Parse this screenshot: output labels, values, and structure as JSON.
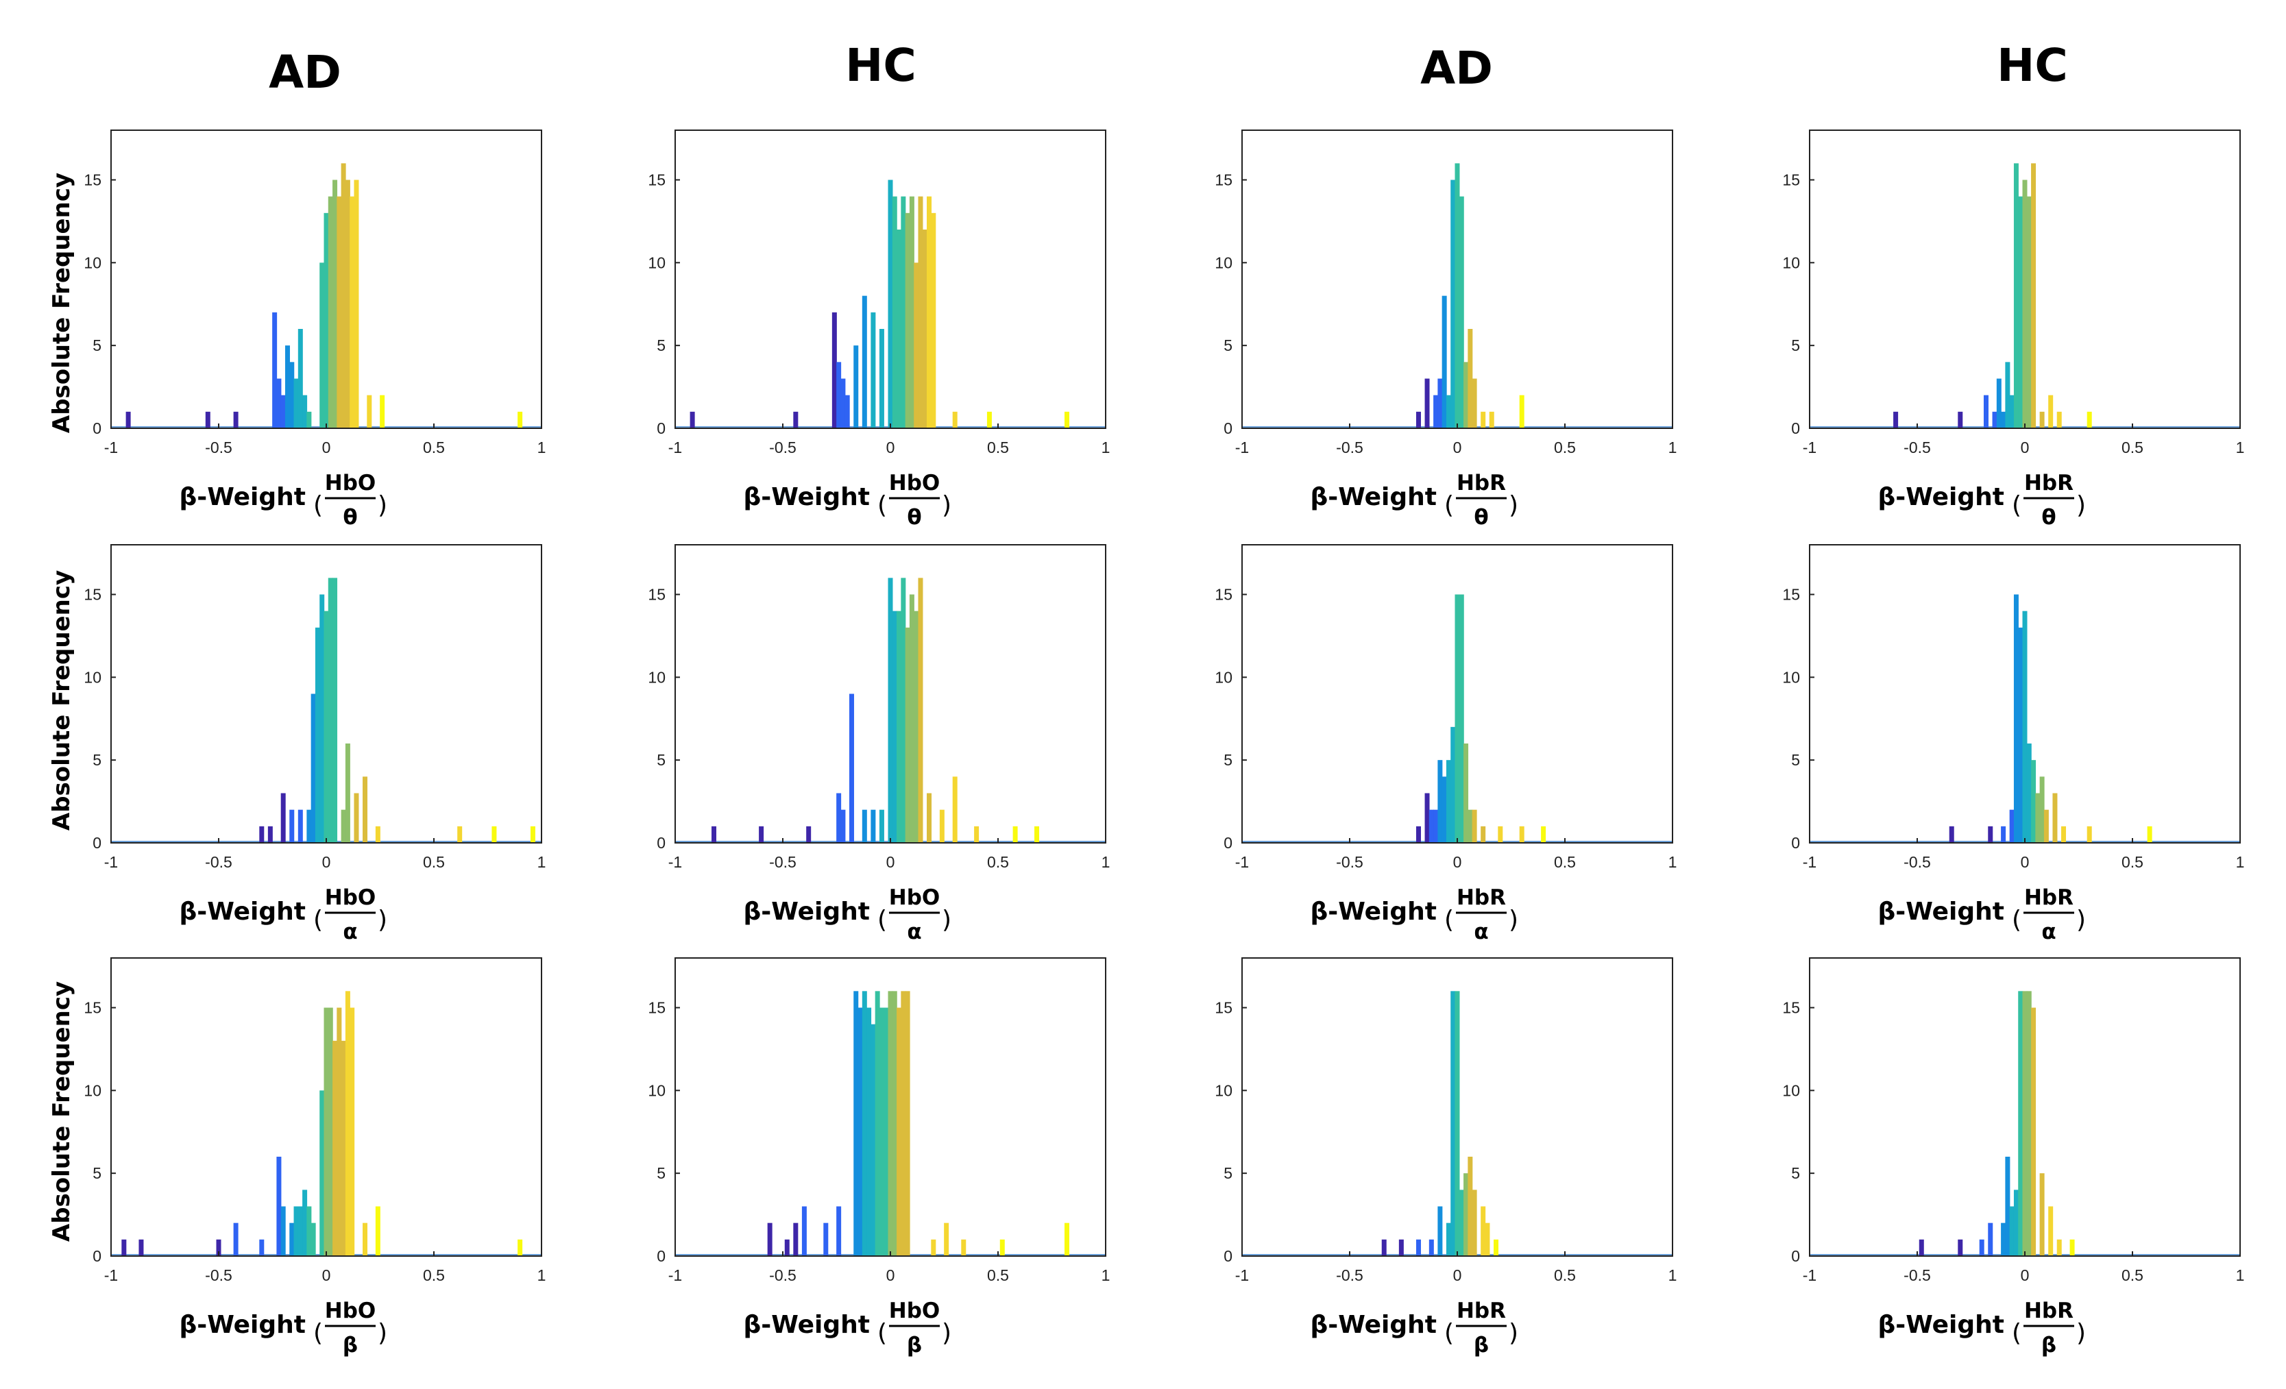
{
  "figure": {
    "column_titles": [
      "AD",
      "HC",
      "AD",
      "HC"
    ],
    "ylabel": "Absolute Frequency",
    "xlabel_prefix": "β-Weight",
    "x_ticks": [
      "-1",
      "-0.5",
      "0",
      "0.5",
      "1"
    ],
    "y_ticks": [
      "0",
      "5",
      "10",
      "15"
    ],
    "colors": [
      "#3e26a8",
      "#2f63f3",
      "#148fdd",
      "#1bafc4",
      "#35c0a1",
      "#8dbf6a",
      "#dbbc3c",
      "#f4d631",
      "#f9fb0e"
    ]
  },
  "chart_data": [
    {
      "type": "bar",
      "title": "AD",
      "xlabel": "β-Weight (HbO/θ)",
      "frac_num": "HbO",
      "frac_den": "θ",
      "ylabel": "Absolute Frequency",
      "xlim": [
        -1,
        1
      ],
      "ylim": [
        0,
        18
      ],
      "x": [
        -0.92,
        -0.55,
        -0.42,
        -0.24,
        -0.22,
        -0.2,
        -0.18,
        -0.16,
        -0.14,
        -0.12,
        -0.1,
        -0.08,
        -0.02,
        0,
        0.02,
        0.04,
        0.06,
        0.08,
        0.1,
        0.12,
        0.14,
        0.2,
        0.26,
        0.9
      ],
      "values": [
        1,
        1,
        1,
        7,
        3,
        2,
        5,
        4,
        3,
        6,
        2,
        1,
        10,
        13,
        14,
        15,
        14,
        16,
        15,
        14,
        15,
        2,
        2,
        1
      ]
    },
    {
      "type": "bar",
      "title": "HC",
      "xlabel": "β-Weight (HbO/θ)",
      "frac_num": "HbO",
      "frac_den": "θ",
      "xlim": [
        -1,
        1
      ],
      "ylim": [
        0,
        18
      ],
      "x": [
        -0.92,
        -0.44,
        -0.26,
        -0.24,
        -0.22,
        -0.2,
        -0.16,
        -0.12,
        -0.08,
        -0.04,
        0,
        0.02,
        0.04,
        0.06,
        0.08,
        0.1,
        0.12,
        0.14,
        0.16,
        0.18,
        0.2,
        0.3,
        0.46,
        0.82
      ],
      "values": [
        1,
        1,
        7,
        4,
        3,
        2,
        5,
        8,
        7,
        6,
        15,
        14,
        12,
        14,
        13,
        14,
        10,
        14,
        12,
        14,
        13,
        1,
        1,
        1
      ]
    },
    {
      "type": "bar",
      "title": "AD",
      "xlabel": "β-Weight (HbR/θ)",
      "frac_num": "HbR",
      "frac_den": "θ",
      "xlim": [
        -1,
        1
      ],
      "ylim": [
        0,
        18
      ],
      "x": [
        -0.18,
        -0.14,
        -0.1,
        -0.08,
        -0.06,
        -0.04,
        -0.02,
        0,
        0.02,
        0.04,
        0.06,
        0.08,
        0.12,
        0.16,
        0.3
      ],
      "values": [
        1,
        3,
        2,
        3,
        8,
        2,
        15,
        16,
        14,
        4,
        6,
        3,
        1,
        1,
        2
      ]
    },
    {
      "type": "bar",
      "title": "HC",
      "xlabel": "β-Weight (HbR/θ)",
      "frac_num": "HbR",
      "frac_den": "θ",
      "xlim": [
        -1,
        1
      ],
      "ylim": [
        0,
        18
      ],
      "x": [
        -0.6,
        -0.3,
        -0.18,
        -0.14,
        -0.12,
        -0.1,
        -0.08,
        -0.06,
        -0.04,
        -0.02,
        0,
        0.02,
        0.04,
        0.08,
        0.12,
        0.16,
        0.3
      ],
      "values": [
        1,
        1,
        2,
        1,
        3,
        1,
        4,
        2,
        16,
        14,
        15,
        14,
        16,
        1,
        2,
        1,
        1
      ]
    },
    {
      "type": "bar",
      "title": "AD",
      "xlabel": "β-Weight (HbO/α)",
      "frac_num": "HbO",
      "frac_den": "α",
      "xlim": [
        -1,
        1
      ],
      "ylim": [
        0,
        18
      ],
      "x": [
        -0.3,
        -0.26,
        -0.2,
        -0.16,
        -0.12,
        -0.08,
        -0.06,
        -0.04,
        -0.02,
        0,
        0.02,
        0.04,
        0.08,
        0.1,
        0.14,
        0.18,
        0.24,
        0.62,
        0.78,
        0.96
      ],
      "values": [
        1,
        1,
        3,
        2,
        2,
        2,
        9,
        13,
        15,
        14,
        16,
        16,
        2,
        6,
        3,
        4,
        1,
        1,
        1,
        1
      ]
    },
    {
      "type": "bar",
      "title": "HC",
      "xlabel": "β-Weight (HbO/α)",
      "frac_num": "HbO",
      "frac_den": "α",
      "xlim": [
        -1,
        1
      ],
      "ylim": [
        0,
        18
      ],
      "x": [
        -0.82,
        -0.6,
        -0.38,
        -0.24,
        -0.22,
        -0.18,
        -0.12,
        -0.08,
        -0.04,
        0,
        0.02,
        0.04,
        0.06,
        0.08,
        0.1,
        0.12,
        0.14,
        0.18,
        0.24,
        0.3,
        0.4,
        0.58,
        0.68
      ],
      "values": [
        1,
        1,
        1,
        3,
        2,
        9,
        2,
        2,
        2,
        16,
        14,
        14,
        16,
        13,
        15,
        14,
        16,
        3,
        2,
        4,
        1,
        1,
        1
      ]
    },
    {
      "type": "bar",
      "title": "AD",
      "xlabel": "β-Weight (HbR/α)",
      "frac_num": "HbR",
      "frac_den": "α",
      "xlim": [
        -1,
        1
      ],
      "ylim": [
        0,
        18
      ],
      "x": [
        -0.18,
        -0.14,
        -0.12,
        -0.1,
        -0.08,
        -0.06,
        -0.04,
        -0.02,
        0,
        0.02,
        0.04,
        0.06,
        0.08,
        0.12,
        0.2,
        0.3,
        0.4
      ],
      "values": [
        1,
        3,
        2,
        2,
        5,
        4,
        5,
        7,
        15,
        15,
        6,
        2,
        2,
        1,
        1,
        1,
        1
      ]
    },
    {
      "type": "bar",
      "title": "HC",
      "xlabel": "β-Weight (HbR/α)",
      "frac_num": "HbR",
      "frac_den": "α",
      "xlim": [
        -1,
        1
      ],
      "ylim": [
        0,
        18
      ],
      "x": [
        -0.34,
        -0.16,
        -0.1,
        -0.06,
        -0.04,
        -0.02,
        0,
        0.02,
        0.04,
        0.06,
        0.08,
        0.1,
        0.14,
        0.18,
        0.3,
        0.58
      ],
      "values": [
        1,
        1,
        1,
        2,
        15,
        13,
        14,
        6,
        5,
        3,
        4,
        2,
        3,
        1,
        1,
        1
      ]
    },
    {
      "type": "bar",
      "title": "AD",
      "xlabel": "β-Weight (HbO/β)",
      "frac_num": "HbO",
      "frac_den": "β",
      "xlim": [
        -1,
        1
      ],
      "ylim": [
        0,
        18
      ],
      "x": [
        -0.94,
        -0.86,
        -0.5,
        -0.42,
        -0.3,
        -0.22,
        -0.2,
        -0.16,
        -0.14,
        -0.12,
        -0.1,
        -0.08,
        -0.06,
        -0.02,
        0,
        0.02,
        0.04,
        0.06,
        0.08,
        0.1,
        0.12,
        0.18,
        0.24,
        0.9
      ],
      "values": [
        1,
        1,
        1,
        2,
        1,
        6,
        3,
        2,
        3,
        3,
        4,
        3,
        2,
        10,
        15,
        15,
        13,
        15,
        13,
        16,
        15,
        2,
        3,
        1
      ]
    },
    {
      "type": "bar",
      "title": "HC",
      "xlabel": "β-Weight (HbO/β)",
      "frac_num": "HbO",
      "frac_den": "β",
      "xlim": [
        -1,
        1
      ],
      "ylim": [
        0,
        18
      ],
      "x": [
        -0.56,
        -0.48,
        -0.44,
        -0.4,
        -0.3,
        -0.24,
        -0.16,
        -0.14,
        -0.12,
        -0.1,
        -0.08,
        -0.06,
        -0.04,
        -0.02,
        0,
        0.02,
        0.04,
        0.06,
        0.08,
        0.2,
        0.26,
        0.34,
        0.52,
        0.82
      ],
      "values": [
        2,
        1,
        2,
        3,
        2,
        3,
        16,
        15,
        16,
        15,
        14,
        16,
        15,
        15,
        16,
        16,
        15,
        16,
        16,
        1,
        2,
        1,
        1,
        2
      ]
    },
    {
      "type": "bar",
      "title": "AD",
      "xlabel": "β-Weight (HbR/β)",
      "frac_num": "HbR",
      "frac_den": "β",
      "xlim": [
        -1,
        1
      ],
      "ylim": [
        0,
        18
      ],
      "x": [
        -0.34,
        -0.26,
        -0.18,
        -0.12,
        -0.08,
        -0.04,
        -0.02,
        0,
        0.02,
        0.04,
        0.06,
        0.08,
        0.12,
        0.14,
        0.18
      ],
      "values": [
        1,
        1,
        1,
        1,
        3,
        2,
        16,
        16,
        4,
        5,
        6,
        4,
        3,
        2,
        1
      ]
    },
    {
      "type": "bar",
      "title": "HC",
      "xlabel": "β-Weight (HbR/β)",
      "frac_num": "HbR",
      "frac_den": "β",
      "xlim": [
        -1,
        1
      ],
      "ylim": [
        0,
        18
      ],
      "x": [
        -0.48,
        -0.3,
        -0.2,
        -0.16,
        -0.1,
        -0.08,
        -0.06,
        -0.04,
        -0.02,
        0,
        0.02,
        0.04,
        0.08,
        0.12,
        0.16,
        0.22
      ],
      "values": [
        1,
        1,
        1,
        2,
        2,
        6,
        3,
        4,
        16,
        16,
        16,
        15,
        5,
        3,
        1,
        1
      ]
    }
  ]
}
